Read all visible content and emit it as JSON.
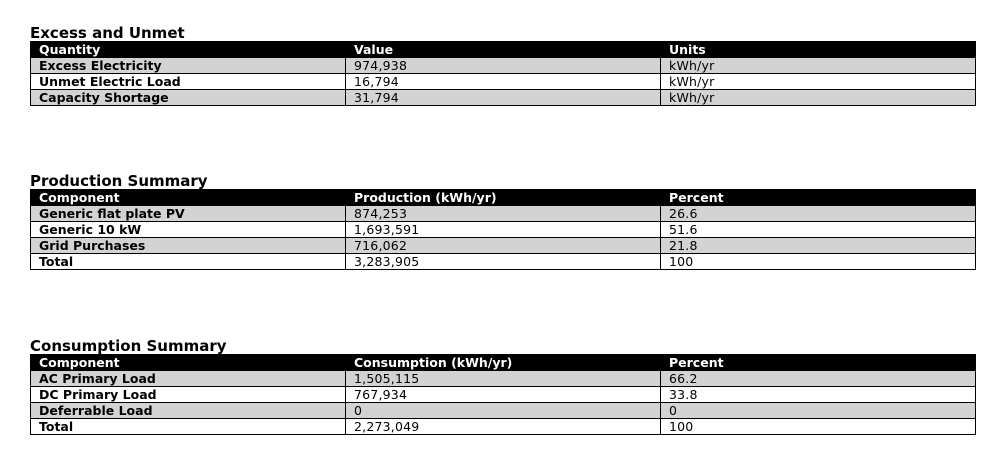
{
  "sections": {
    "excess": {
      "title": "Excess and Unmet",
      "headers": [
        "Quantity",
        "Value",
        "Units"
      ],
      "rows": [
        [
          "Excess Electricity",
          "974,938",
          "kWh/yr"
        ],
        [
          "Unmet Electric Load",
          "16,794",
          "kWh/yr"
        ],
        [
          "Capacity Shortage",
          "31,794",
          "kWh/yr"
        ]
      ]
    },
    "production": {
      "title": "Production Summary",
      "headers": [
        "Component",
        "Production (kWh/yr)",
        "Percent"
      ],
      "rows": [
        [
          "Generic flat plate PV",
          "874,253",
          "26.6"
        ],
        [
          "Generic 10 kW",
          "1,693,591",
          "51.6"
        ],
        [
          "Grid Purchases",
          "716,062",
          "21.8"
        ],
        [
          "Total",
          "3,283,905",
          "100"
        ]
      ]
    },
    "consumption": {
      "title": "Consumption Summary",
      "headers": [
        "Component",
        "Consumption (kWh/yr)",
        "Percent"
      ],
      "rows": [
        [
          "AC Primary Load",
          "1,505,115",
          "66.2"
        ],
        [
          "DC Primary Load",
          "767,934",
          "33.8"
        ],
        [
          "Deferrable Load",
          "0",
          "0"
        ],
        [
          "Total",
          "2,273,049",
          "100"
        ]
      ]
    }
  }
}
